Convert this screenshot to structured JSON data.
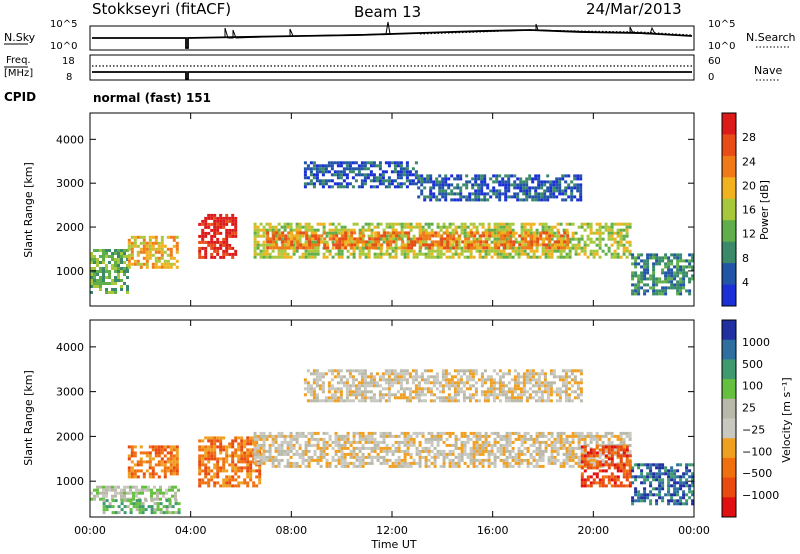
{
  "header": {
    "station": "Stokkseyri (fitACF)",
    "beam": "Beam 13",
    "date": "24/Mar/2013"
  },
  "top_panels": {
    "nsky_label": "N.Sky",
    "nsky_ticks": [
      "10^5",
      "10^0"
    ],
    "nsearch_label": "N.Search",
    "nsearch_ticks": [
      "10^5",
      "10^0"
    ],
    "freq_label": "Freq.",
    "freq_unit": "[MHz]",
    "freq_ticks": [
      "18",
      "8"
    ],
    "nave_label": "Nave",
    "nave_ticks": [
      "60",
      "0"
    ],
    "cpid_label": "CPID",
    "cpid_value": "normal (fast) 151"
  },
  "colors": {
    "power": [
      "#1a2fd6",
      "#2255a8",
      "#3a8a6a",
      "#5fae4a",
      "#a6c83a",
      "#f0b21e",
      "#f07a18",
      "#e84d18",
      "#dd1a1a"
    ],
    "velocity": [
      "#2030a0",
      "#2f6fa0",
      "#3f9a70",
      "#66c040",
      "#b9b9a9",
      "#c8c8c0",
      "#f0a020",
      "#f07010",
      "#e84a10",
      "#e01010"
    ]
  },
  "chart_data": [
    {
      "type": "heatmap",
      "title": "Power",
      "ylabel": "Slant Range [km]",
      "xlabel": "",
      "yticks": [
        "1000",
        "2000",
        "3000",
        "4000"
      ],
      "colorbar_label": "Power [dB]",
      "colorbar_ticks": [
        "4",
        "8",
        "12",
        "16",
        "20",
        "24",
        "28"
      ],
      "regions": [
        {
          "t0": 0.0,
          "t1": 1.5,
          "r0": 500,
          "r1": 1500,
          "level": 3
        },
        {
          "t0": 1.5,
          "t1": 3.5,
          "r0": 1100,
          "r1": 1800,
          "level": 5
        },
        {
          "t0": 4.3,
          "t1": 5.8,
          "r0": 1300,
          "r1": 2300,
          "level": 8
        },
        {
          "t0": 6.5,
          "t1": 21.5,
          "r0": 1300,
          "r1": 2100,
          "level": 4
        },
        {
          "t0": 7.0,
          "t1": 19.0,
          "r0": 1500,
          "r1": 1900,
          "level": 6
        },
        {
          "t0": 8.5,
          "t1": 13.0,
          "r0": 2900,
          "r1": 3500,
          "level": 1
        },
        {
          "t0": 13.0,
          "t1": 19.5,
          "r0": 2600,
          "r1": 3200,
          "level": 1
        },
        {
          "t0": 21.5,
          "t1": 24.0,
          "r0": 500,
          "r1": 1400,
          "level": 2
        }
      ]
    },
    {
      "type": "heatmap",
      "title": "Velocity",
      "ylabel": "Slant Range [km]",
      "xlabel": "Time UT",
      "xticks": [
        "00:00",
        "04:00",
        "08:00",
        "12:00",
        "16:00",
        "20:00",
        "00:00"
      ],
      "yticks": [
        "1000",
        "2000",
        "3000",
        "4000"
      ],
      "colorbar_label": "Velocity [m s⁻¹]",
      "colorbar_ticks": [
        "1000",
        "500",
        "100",
        "25",
        "−25",
        "−100",
        "−500",
        "−1000"
      ],
      "regions": [
        {
          "t0": 0.0,
          "t1": 3.5,
          "r0": 600,
          "r1": 900,
          "level": 4
        },
        {
          "t0": 0.5,
          "t1": 3.5,
          "r0": 300,
          "r1": 600,
          "level": 3
        },
        {
          "t0": 1.5,
          "t1": 3.5,
          "r0": 1100,
          "r1": 1800,
          "level": 7
        },
        {
          "t0": 4.3,
          "t1": 6.8,
          "r0": 900,
          "r1": 2000,
          "level": 7
        },
        {
          "t0": 6.5,
          "t1": 21.5,
          "r0": 1300,
          "r1": 2100,
          "level": 5
        },
        {
          "t0": 8.5,
          "t1": 19.5,
          "r0": 2800,
          "r1": 3500,
          "level": 5
        },
        {
          "t0": 19.5,
          "t1": 21.5,
          "r0": 900,
          "r1": 1800,
          "level": 8
        },
        {
          "t0": 21.5,
          "t1": 24.0,
          "r0": 500,
          "r1": 1400,
          "level": 1
        }
      ]
    }
  ]
}
